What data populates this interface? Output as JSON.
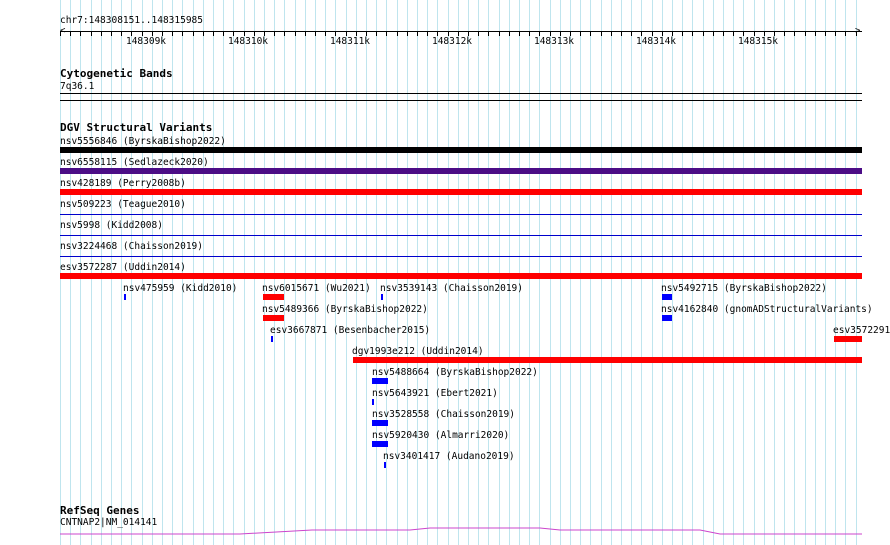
{
  "region": {
    "label": "chr7:148308151..148315985",
    "scale_labels": [
      "148309k",
      "148310k",
      "148311k",
      "148312k",
      "148313k",
      "148314k",
      "148315k"
    ]
  },
  "tracks": {
    "cytogenetic": {
      "title": "Cytogenetic Bands",
      "band": "7q36.1"
    },
    "dgv": {
      "title": "DGV Structural Variants",
      "rows": [
        {
          "label": "nsv5556846 (ByrskaBishop2022)",
          "color": "#000000"
        },
        {
          "label": "nsv6558115 (Sedlazeck2020)",
          "color": "#4b0d86"
        },
        {
          "label": "nsv428189 (Perry2008b)",
          "color": "#ff0000"
        },
        {
          "label": "nsv509223 (Teague2010)",
          "color": "#0000cc"
        },
        {
          "label": "nsv5998 (Kidd2008)",
          "color": "#0000cc"
        },
        {
          "label": "nsv3224468 (Chaisson2019)",
          "color": "#0000cc"
        },
        {
          "label": "esv3572287 (Uddin2014)",
          "color": "#ff0000"
        }
      ],
      "features": [
        {
          "label": "nsv475959 (Kidd2010)",
          "color": "#0000ff"
        },
        {
          "label": "nsv6015671 (Wu2021)",
          "color": "#ff0000"
        },
        {
          "label": "nsv3539143 (Chaisson2019)",
          "color": "#0000ff"
        },
        {
          "label": "nsv5492715 (ByrskaBishop2022)",
          "color": "#0000ff"
        },
        {
          "label": "nsv5489366 (ByrskaBishop2022)",
          "color": "#ff0000"
        },
        {
          "label": "nsv4162840 (gnomADStructuralVariants)",
          "color": "#0000ff"
        },
        {
          "label": "esv3667871 (Besenbacher2015)",
          "color": "#0000ff"
        },
        {
          "label": "esv3572291",
          "color": "#ff0000"
        },
        {
          "label": "dgv1993e212 (Uddin2014)",
          "color": "#ff0000"
        },
        {
          "label": "nsv5488664 (ByrskaBishop2022)",
          "color": "#0000ff"
        },
        {
          "label": "nsv5643921 (Ebert2021)",
          "color": "#0000ff"
        },
        {
          "label": "nsv3528558 (Chaisson2019)",
          "color": "#0000ff"
        },
        {
          "label": "nsv5920430 (Almarri2020)",
          "color": "#0000ff"
        },
        {
          "label": "nsv3401417 (Audano2019)",
          "color": "#0000ff"
        }
      ]
    },
    "refseq": {
      "title": "RefSeq Genes",
      "gene": "CNTNAP2|NM_014141",
      "color": "#cc44cc"
    }
  }
}
